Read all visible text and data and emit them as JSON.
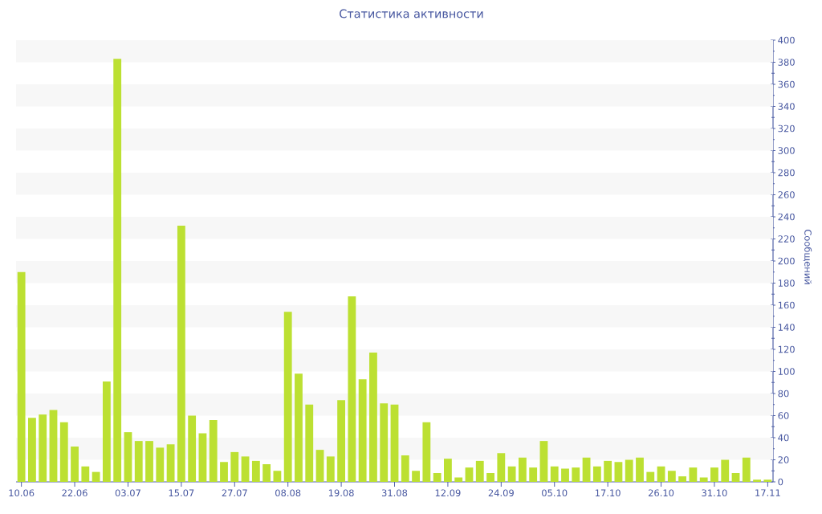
{
  "chart_data": {
    "type": "bar",
    "title": "Статистика активности",
    "ylabel": "Сообщений",
    "categories": [
      "10.06",
      null,
      null,
      null,
      null,
      "22.06",
      null,
      null,
      null,
      null,
      "03.07",
      null,
      null,
      null,
      null,
      "15.07",
      null,
      null,
      null,
      null,
      "27.07",
      null,
      null,
      null,
      null,
      "08.08",
      null,
      null,
      null,
      null,
      "19.08",
      null,
      null,
      null,
      null,
      "31.08",
      null,
      null,
      null,
      null,
      "12.09",
      null,
      null,
      null,
      null,
      "24.09",
      null,
      null,
      null,
      null,
      "05.10",
      null,
      null,
      null,
      null,
      "17.10",
      null,
      null,
      null,
      null,
      "26.10",
      null,
      null,
      null,
      null,
      "31.10",
      null,
      null,
      null,
      null,
      "17.11"
    ],
    "values": [
      190,
      58,
      61,
      65,
      54,
      32,
      14,
      9,
      91,
      383,
      45,
      37,
      37,
      31,
      34,
      232,
      60,
      44,
      56,
      18,
      27,
      23,
      19,
      16,
      10,
      154,
      98,
      70,
      29,
      23,
      74,
      168,
      93,
      117,
      71,
      70,
      24,
      10,
      54,
      8,
      21,
      4,
      13,
      19,
      8,
      26,
      14,
      22,
      13,
      37,
      14,
      12,
      13,
      22,
      14,
      19,
      18,
      20,
      22,
      9,
      14,
      10,
      5,
      13,
      4,
      13,
      20,
      8,
      22,
      2,
      2
    ],
    "color": "#bce032",
    "ylim": [
      0,
      400
    ],
    "yticks": [
      0,
      {
        "value": 10,
        "label": null
      },
      20,
      {
        "value": 30,
        "label": null
      },
      40,
      {
        "value": 50,
        "label": null
      },
      60,
      {
        "value": 70,
        "label": null
      },
      80,
      {
        "value": 90,
        "label": null
      },
      100,
      {
        "value": 110,
        "label": null
      },
      120,
      {
        "value": 130,
        "label": null
      },
      140,
      {
        "value": 150,
        "label": null
      },
      160,
      {
        "value": 170,
        "label": null
      },
      180,
      {
        "value": 190,
        "label": null
      },
      200,
      {
        "value": 210,
        "label": null
      },
      220,
      {
        "value": 230,
        "label": null
      },
      240,
      {
        "value": 250,
        "label": null
      },
      260,
      {
        "value": 270,
        "label": null
      },
      280,
      {
        "value": 290,
        "label": null
      },
      300,
      {
        "value": 310,
        "label": null
      },
      320,
      {
        "value": 330,
        "label": null
      },
      340,
      {
        "value": 350,
        "label": null
      },
      360,
      {
        "value": 370,
        "label": null
      },
      380,
      {
        "value": 390,
        "label": null
      },
      400
    ],
    "bands": [
      {
        "axis": "y",
        "from": 20,
        "to": 40,
        "color": "#f7f7f7"
      },
      {
        "axis": "y",
        "from": 60,
        "to": 80,
        "color": "#f7f7f7"
      },
      {
        "axis": "y",
        "from": 100,
        "to": 120,
        "color": "#f7f7f7"
      },
      {
        "axis": "y",
        "from": 140,
        "to": 160,
        "color": "#f7f7f7"
      },
      {
        "axis": "y",
        "from": 180,
        "to": 200,
        "color": "#f7f7f7"
      },
      {
        "axis": "y",
        "from": 220,
        "to": 240,
        "color": "#f7f7f7"
      },
      {
        "axis": "y",
        "from": 260,
        "to": 280,
        "color": "#f7f7f7"
      },
      {
        "axis": "y",
        "from": 300,
        "to": 320,
        "color": "#f7f7f7"
      },
      {
        "axis": "y",
        "from": 340,
        "to": 360,
        "color": "#f7f7f7"
      },
      {
        "axis": "y",
        "from": 380,
        "to": 400,
        "color": "#f7f7f7"
      }
    ]
  }
}
